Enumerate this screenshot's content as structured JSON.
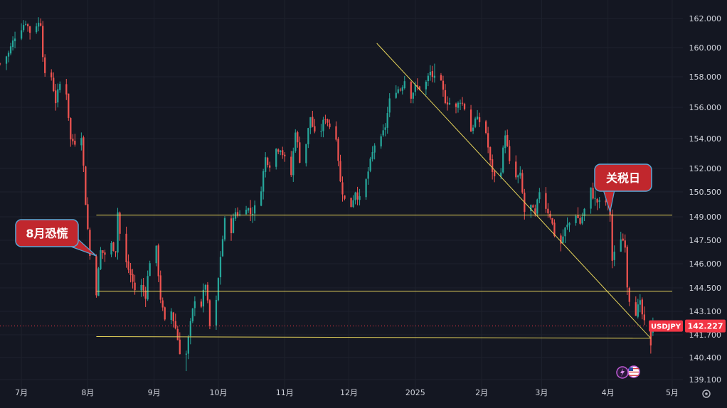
{
  "chart_data": {
    "type": "candlestick",
    "symbol": "USDJPY",
    "last_price": 142.227,
    "last_price_label": "142.227",
    "y_ticks": [
      162.0,
      160.0,
      158.0,
      156.0,
      154.0,
      152.0,
      150.5,
      149.0,
      147.5,
      146.0,
      144.5,
      143.1,
      141.7,
      140.4,
      139.1
    ],
    "y_tick_labels": [
      "162.000",
      "160.000",
      "158.000",
      "156.000",
      "154.000",
      "152.000",
      "150.500",
      "149.000",
      "147.500",
      "146.000",
      "144.500",
      "143.100",
      "141.700",
      "140.400",
      "139.100"
    ],
    "x_tick_labels": [
      "7月",
      "8月",
      "9月",
      "10月",
      "11月",
      "12月",
      "2025",
      "2月",
      "3月",
      "4月",
      "5月"
    ],
    "x_tick_dates": [
      "2024-07-01",
      "2024-08-01",
      "2024-09-01",
      "2024-10-01",
      "2024-11-01",
      "2024-12-01",
      "2025-01-01",
      "2025-02-01",
      "2025-03-01",
      "2025-04-01",
      "2025-05-01"
    ],
    "date_range": [
      "2024-06-21",
      "2025-05-06"
    ],
    "y_range": [
      138.7,
      163.0
    ],
    "series_path": [
      [
        "2024-06-21",
        158.9
      ],
      [
        "2024-06-25",
        159.6
      ],
      [
        "2024-06-28",
        160.8
      ],
      [
        "2024-07-01",
        161.4
      ],
      [
        "2024-07-03",
        161.8
      ],
      [
        "2024-07-05",
        161.1
      ],
      [
        "2024-07-08",
        161.6
      ],
      [
        "2024-07-10",
        161.7
      ],
      [
        "2024-07-11",
        159.6
      ],
      [
        "2024-07-12",
        158.0
      ],
      [
        "2024-07-15",
        158.0
      ],
      [
        "2024-07-17",
        156.4
      ],
      [
        "2024-07-19",
        157.5
      ],
      [
        "2024-07-22",
        157.0
      ],
      [
        "2024-07-24",
        153.9
      ],
      [
        "2024-07-26",
        153.8
      ],
      [
        "2024-07-29",
        154.3
      ],
      [
        "2024-07-31",
        149.9
      ],
      [
        "2024-08-02",
        146.5
      ],
      [
        "2024-08-05",
        144.3
      ],
      [
        "2024-08-07",
        146.8
      ],
      [
        "2024-08-09",
        146.6
      ],
      [
        "2024-08-12",
        147.2
      ],
      [
        "2024-08-14",
        146.9
      ],
      [
        "2024-08-15",
        149.3
      ],
      [
        "2024-08-16",
        147.9
      ],
      [
        "2024-08-19",
        146.0
      ],
      [
        "2024-08-21",
        145.3
      ],
      [
        "2024-08-23",
        144.4
      ],
      [
        "2024-08-26",
        144.6
      ],
      [
        "2024-08-28",
        144.1
      ],
      [
        "2024-08-30",
        146.2
      ],
      [
        "2024-09-02",
        146.9
      ],
      [
        "2024-09-04",
        143.9
      ],
      [
        "2024-09-06",
        142.4
      ],
      [
        "2024-09-09",
        143.1
      ],
      [
        "2024-09-11",
        142.1
      ],
      [
        "2024-09-13",
        140.8
      ],
      [
        "2024-09-16",
        140.6
      ],
      [
        "2024-09-18",
        142.3
      ],
      [
        "2024-09-20",
        143.9
      ],
      [
        "2024-09-23",
        143.5
      ],
      [
        "2024-09-25",
        144.8
      ],
      [
        "2024-09-27",
        142.2
      ],
      [
        "2024-09-30",
        143.6
      ],
      [
        "2024-10-02",
        146.5
      ],
      [
        "2024-10-04",
        148.7
      ],
      [
        "2024-10-07",
        148.2
      ],
      [
        "2024-10-09",
        149.3
      ],
      [
        "2024-10-11",
        149.1
      ],
      [
        "2024-10-14",
        149.7
      ],
      [
        "2024-10-16",
        149.2
      ],
      [
        "2024-10-18",
        149.5
      ],
      [
        "2024-10-21",
        150.8
      ],
      [
        "2024-10-23",
        152.7
      ],
      [
        "2024-10-25",
        152.3
      ],
      [
        "2024-10-28",
        153.3
      ],
      [
        "2024-10-30",
        153.4
      ],
      [
        "2024-11-01",
        152.6
      ],
      [
        "2024-11-04",
        151.6
      ],
      [
        "2024-11-06",
        154.6
      ],
      [
        "2024-11-08",
        152.6
      ],
      [
        "2024-11-11",
        153.7
      ],
      [
        "2024-11-13",
        155.4
      ],
      [
        "2024-11-15",
        154.2
      ],
      [
        "2024-11-18",
        154.6
      ],
      [
        "2024-11-20",
        155.4
      ],
      [
        "2024-11-22",
        154.8
      ],
      [
        "2024-11-25",
        154.2
      ],
      [
        "2024-11-27",
        151.1
      ],
      [
        "2024-11-29",
        150.0
      ],
      [
        "2024-12-02",
        149.7
      ],
      [
        "2024-12-04",
        150.6
      ],
      [
        "2024-12-06",
        150.0
      ],
      [
        "2024-12-09",
        151.2
      ],
      [
        "2024-12-11",
        152.4
      ],
      [
        "2024-12-13",
        153.6
      ],
      [
        "2024-12-16",
        153.9
      ],
      [
        "2024-12-18",
        154.8
      ],
      [
        "2024-12-20",
        156.4
      ],
      [
        "2024-12-23",
        157.2
      ],
      [
        "2024-12-25",
        157.2
      ],
      [
        "2024-12-27",
        157.8
      ],
      [
        "2024-12-30",
        156.8
      ],
      [
        "2025-01-01",
        157.3
      ],
      [
        "2025-01-03",
        157.3
      ],
      [
        "2025-01-06",
        157.6
      ],
      [
        "2025-01-08",
        158.3
      ],
      [
        "2025-01-10",
        157.8
      ],
      [
        "2025-01-13",
        157.5
      ],
      [
        "2025-01-15",
        156.5
      ],
      [
        "2025-01-17",
        156.3
      ],
      [
        "2025-01-20",
        155.9
      ],
      [
        "2025-01-22",
        156.5
      ],
      [
        "2025-01-24",
        156.0
      ],
      [
        "2025-01-27",
        154.5
      ],
      [
        "2025-01-29",
        155.2
      ],
      [
        "2025-01-31",
        155.1
      ],
      [
        "2025-02-03",
        154.4
      ],
      [
        "2025-02-05",
        152.4
      ],
      [
        "2025-02-07",
        151.4
      ],
      [
        "2025-02-10",
        152.0
      ],
      [
        "2025-02-12",
        154.4
      ],
      [
        "2025-02-14",
        152.3
      ],
      [
        "2025-02-17",
        151.4
      ],
      [
        "2025-02-19",
        151.5
      ],
      [
        "2025-02-21",
        149.3
      ],
      [
        "2025-02-24",
        149.6
      ],
      [
        "2025-02-26",
        149.0
      ],
      [
        "2025-02-28",
        150.6
      ],
      [
        "2025-03-03",
        149.6
      ],
      [
        "2025-03-05",
        149.1
      ],
      [
        "2025-03-07",
        147.9
      ],
      [
        "2025-03-10",
        147.3
      ],
      [
        "2025-03-12",
        148.2
      ],
      [
        "2025-03-14",
        148.6
      ],
      [
        "2025-03-17",
        149.2
      ],
      [
        "2025-03-19",
        148.6
      ],
      [
        "2025-03-21",
        149.4
      ],
      [
        "2025-03-24",
        150.6
      ],
      [
        "2025-03-26",
        150.0
      ],
      [
        "2025-03-28",
        149.8
      ],
      [
        "2025-03-31",
        149.9
      ],
      [
        "2025-04-02",
        149.2
      ],
      [
        "2025-04-03",
        146.2
      ],
      [
        "2025-04-07",
        147.7
      ],
      [
        "2025-04-09",
        147.3
      ],
      [
        "2025-04-10",
        144.7
      ],
      [
        "2025-04-11",
        143.9
      ],
      [
        "2025-04-14",
        143.1
      ],
      [
        "2025-04-16",
        143.5
      ],
      [
        "2025-04-18",
        142.3
      ],
      [
        "2025-04-21",
        140.9
      ],
      [
        "2025-04-22",
        142.2
      ]
    ],
    "trend_lines": [
      {
        "from": [
          "2024-12-14",
          160.3
        ],
        "to": [
          "2025-04-21",
          141.5
        ]
      },
      {
        "from": [
          "2024-08-05",
          149.1
        ],
        "to": [
          "2025-05-01",
          149.1
        ]
      },
      {
        "from": [
          "2024-08-05",
          144.3
        ],
        "to": [
          "2025-05-01",
          144.3
        ]
      },
      {
        "from": [
          "2024-08-05",
          141.6
        ],
        "to": [
          "2025-04-21",
          141.5
        ]
      }
    ],
    "annotations": [
      {
        "text": "8月恐慌",
        "anchor": [
          "2024-08-05",
          146.5
        ],
        "placement": "left"
      },
      {
        "text": "关税日",
        "anchor": [
          "2025-04-02",
          149.3
        ],
        "placement": "above"
      }
    ],
    "colors": {
      "background": "#141722",
      "up": "#26a69a",
      "down": "#ef5350",
      "trendline": "#e5d35a",
      "callout_fill": "#c1272d",
      "callout_border": "#5aa8d6",
      "price_badge": "#f23645",
      "grid": "#1e222d",
      "text": "#d1d4dc"
    },
    "grid": true,
    "icons": [
      "lightning-icon",
      "us-flag-icon",
      "gear-icon"
    ]
  }
}
